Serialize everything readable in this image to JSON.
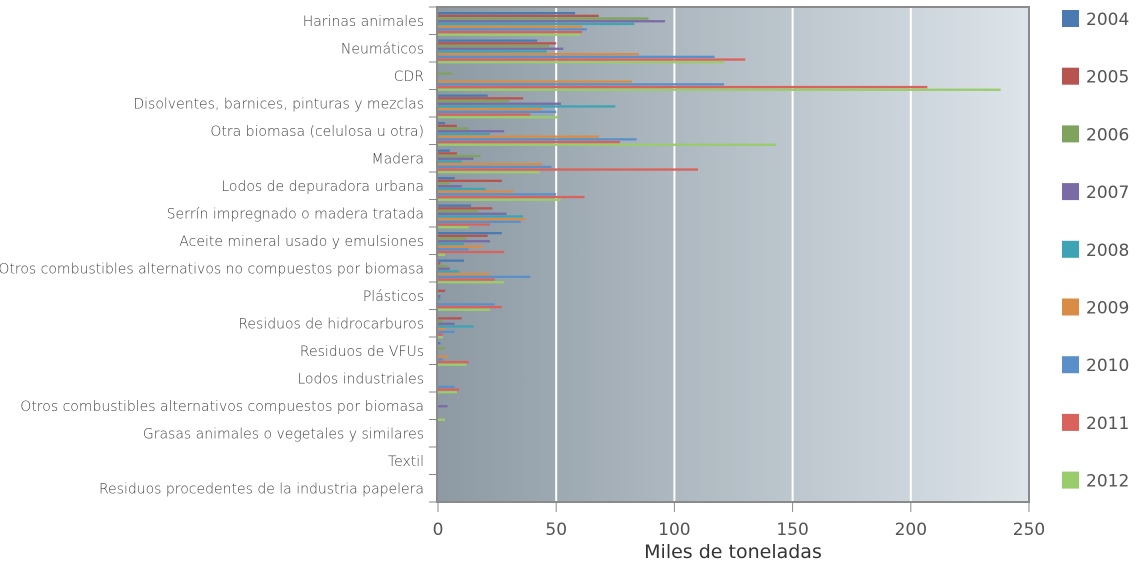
{
  "chart_data": {
    "type": "bar",
    "orientation": "horizontal",
    "xlabel": "Miles de toneladas",
    "xlim": [
      0,
      250
    ],
    "xticks": [
      "0",
      "50",
      "100",
      "150",
      "200",
      "250"
    ],
    "grid": "vertical",
    "legend_position": "right",
    "categories": [
      "Harinas animales",
      "Neumáticos",
      "CDR",
      "Disolventes, barnices, pinturas y mezclas",
      "Otra biomasa (celulosa u otra)",
      "Madera",
      "Lodos de depuradora urbana",
      "Serrín impregnado o madera tratada",
      "Aceite mineral usado y emulsiones",
      "Otros combustibles alternativos no compuestos por biomasa",
      "Plásticos",
      "Residuos de hidrocarburos",
      "Residuos de VFUs",
      "Lodos industriales",
      "Otros combustibles alternativos compuestos por biomasa",
      "Grasas animales o vegetales y similares",
      "Textil",
      "Residuos procedentes de la industria papelera"
    ],
    "series": [
      {
        "name": "2004",
        "color": "#4a7ab0",
        "values": [
          58,
          42,
          0,
          21,
          3,
          5,
          7,
          14,
          27,
          11,
          0,
          0,
          1,
          0,
          0,
          0,
          0,
          0
        ]
      },
      {
        "name": "2005",
        "color": "#b85450",
        "values": [
          68,
          50,
          0,
          36,
          8,
          8,
          27,
          23,
          21,
          1,
          3,
          10,
          0,
          0,
          0,
          0,
          0,
          0
        ]
      },
      {
        "name": "2006",
        "color": "#7fa35c",
        "values": [
          89,
          47,
          6,
          30,
          13,
          18,
          5,
          17,
          12,
          4,
          0,
          2,
          3,
          0,
          0,
          0,
          0,
          0
        ]
      },
      {
        "name": "2007",
        "color": "#7a6aa5",
        "values": [
          96,
          53,
          0,
          52,
          28,
          15,
          10,
          29,
          22,
          5,
          1,
          7,
          0,
          0,
          4,
          0,
          0,
          0
        ]
      },
      {
        "name": "2008",
        "color": "#3ea3b3",
        "values": [
          83,
          46,
          0,
          75,
          22,
          10,
          20,
          36,
          11,
          9,
          1,
          15,
          0,
          0,
          0,
          0,
          0,
          0
        ]
      },
      {
        "name": "2009",
        "color": "#d98c45",
        "values": [
          61,
          85,
          82,
          44,
          68,
          44,
          32,
          37,
          19,
          22,
          0,
          3,
          4,
          0,
          0,
          0,
          0,
          0
        ]
      },
      {
        "name": "2010",
        "color": "#5b8fc9",
        "values": [
          63,
          117,
          121,
          50,
          84,
          48,
          50,
          35,
          13,
          39,
          24,
          7,
          2,
          7,
          0,
          0,
          0,
          0
        ]
      },
      {
        "name": "2011",
        "color": "#d9625c",
        "values": [
          61,
          130,
          207,
          39,
          77,
          110,
          62,
          22,
          28,
          24,
          27,
          2,
          13,
          9,
          0,
          0,
          0,
          0
        ]
      },
      {
        "name": "2012",
        "color": "#99cc6a",
        "values": [
          60,
          121,
          238,
          51,
          143,
          43,
          52,
          13,
          3,
          28,
          22,
          2,
          12,
          8,
          3,
          0,
          0,
          0
        ]
      }
    ]
  }
}
